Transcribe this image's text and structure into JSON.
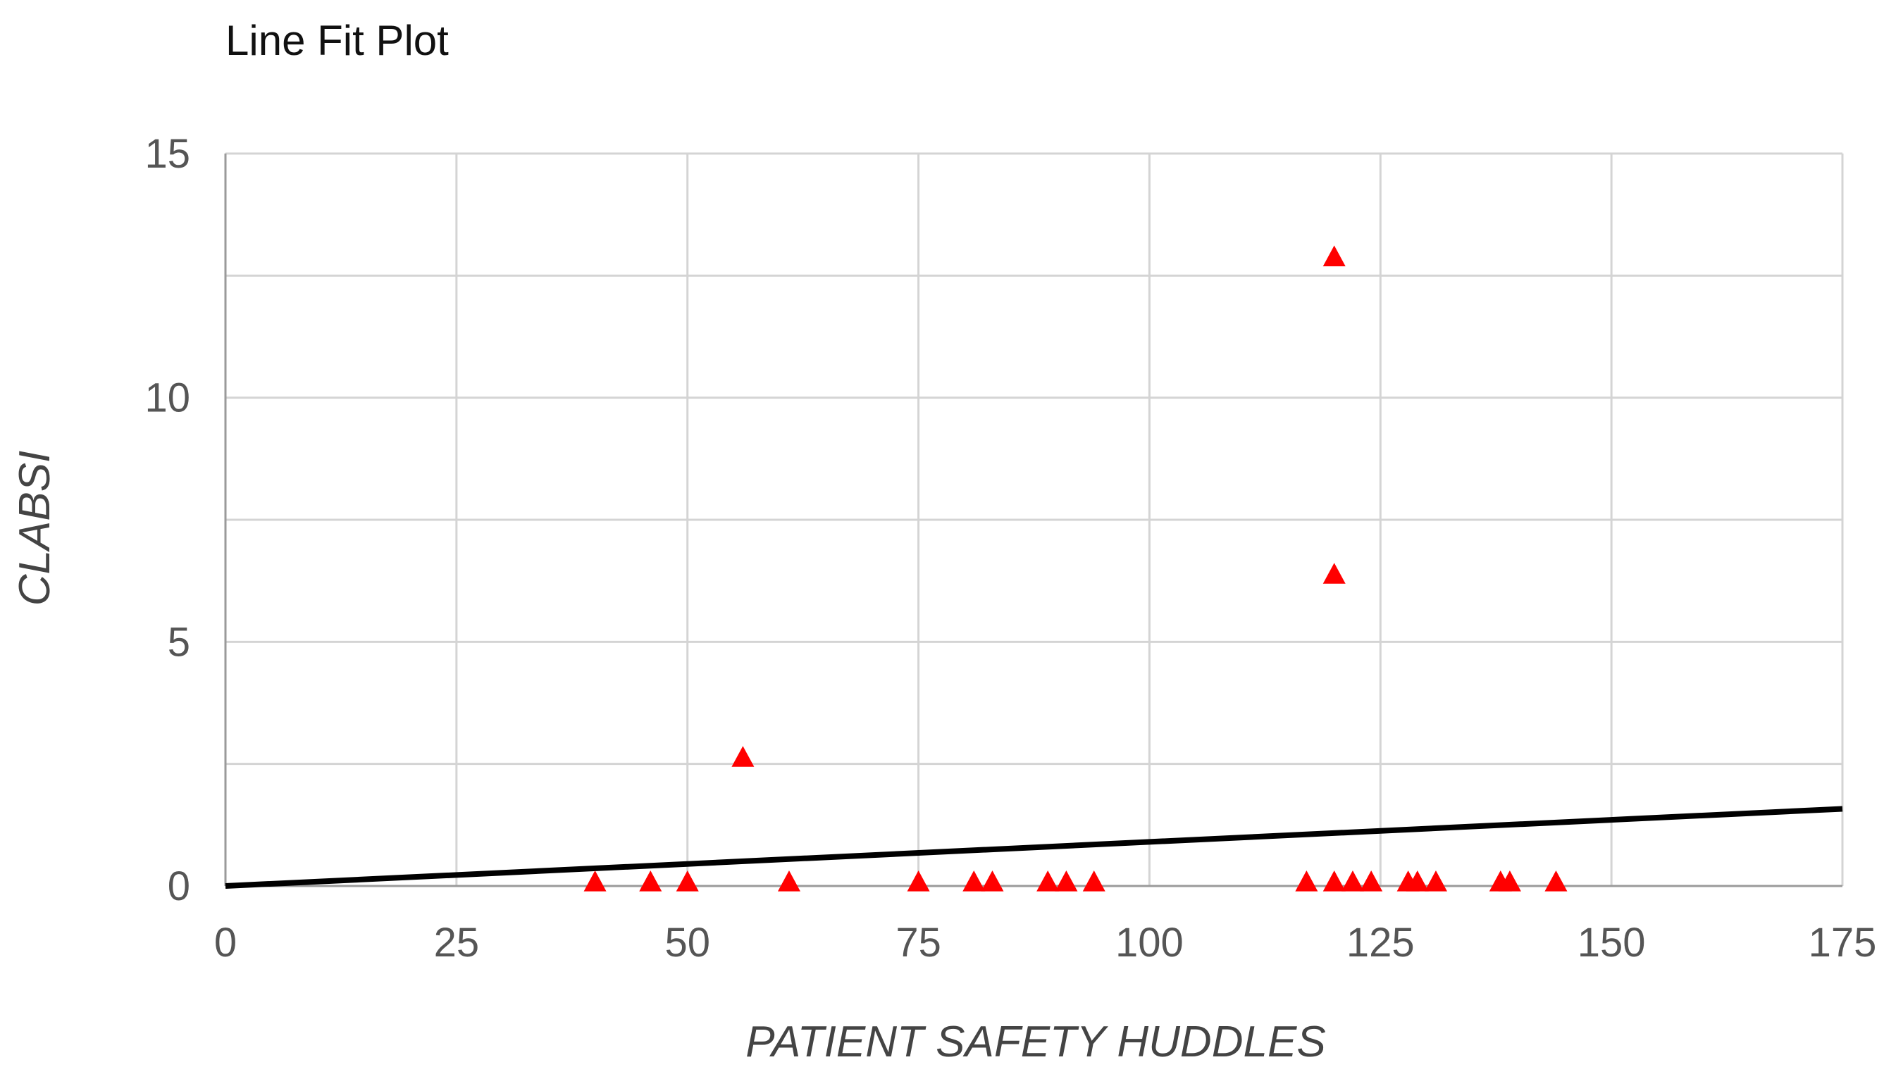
{
  "chart_data": {
    "type": "scatter",
    "title": "Line Fit Plot",
    "xlabel": "PATIENT SAFETY HUDDLES",
    "ylabel": "CLABSI",
    "xlim": [
      0,
      175
    ],
    "ylim": [
      0,
      15
    ],
    "x_ticks": [
      "0",
      "25",
      "50",
      "75",
      "100",
      "125",
      "150",
      "175"
    ],
    "y_ticks": [
      "0",
      "5",
      "10",
      "15"
    ],
    "grid": true,
    "marker": "triangle",
    "marker_color": "#ff0000",
    "line_color": "#000000",
    "points": [
      {
        "x": 40,
        "y": 0
      },
      {
        "x": 46,
        "y": 0
      },
      {
        "x": 50,
        "y": 0
      },
      {
        "x": 56,
        "y": 2.55
      },
      {
        "x": 61,
        "y": 0
      },
      {
        "x": 75,
        "y": 0
      },
      {
        "x": 81,
        "y": 0
      },
      {
        "x": 83,
        "y": 0
      },
      {
        "x": 89,
        "y": 0
      },
      {
        "x": 91,
        "y": 0
      },
      {
        "x": 94,
        "y": 0
      },
      {
        "x": 117,
        "y": 0
      },
      {
        "x": 120,
        "y": 0
      },
      {
        "x": 120,
        "y": 6.3
      },
      {
        "x": 120,
        "y": 12.8
      },
      {
        "x": 122,
        "y": 0
      },
      {
        "x": 124,
        "y": 0
      },
      {
        "x": 128,
        "y": 0
      },
      {
        "x": 129,
        "y": 0
      },
      {
        "x": 131,
        "y": 0
      },
      {
        "x": 138,
        "y": 0
      },
      {
        "x": 139,
        "y": 0
      },
      {
        "x": 144,
        "y": 0
      }
    ],
    "fit_line": [
      {
        "x": 0,
        "y": 0
      },
      {
        "x": 175,
        "y": 1.58
      }
    ]
  }
}
